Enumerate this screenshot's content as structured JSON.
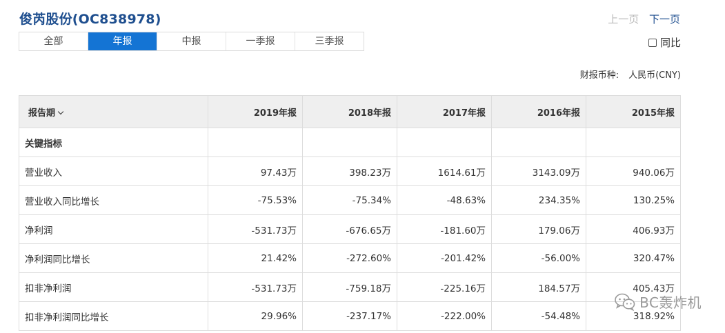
{
  "header": {
    "title": "俊芮股份(OC838978)"
  },
  "pager": {
    "prev": "上一页",
    "next": "下一页"
  },
  "tabs": [
    "全部",
    "年报",
    "中报",
    "一季报",
    "三季报"
  ],
  "active_tab": "年报",
  "yoy_label": "同比",
  "currency": {
    "label": "财报币种:",
    "value": "人民币(CNY)"
  },
  "table": {
    "headers": [
      "报告期",
      "2019年报",
      "2018年报",
      "2017年报",
      "2016年报",
      "2015年报"
    ],
    "section": "关键指标",
    "rows": [
      [
        "营业收入",
        "97.43万",
        "398.23万",
        "1614.61万",
        "3143.09万",
        "940.06万"
      ],
      [
        "营业收入同比增长",
        "-75.53%",
        "-75.34%",
        "-48.63%",
        "234.35%",
        "130.25%"
      ],
      [
        "净利润",
        "-531.73万",
        "-676.65万",
        "-181.60万",
        "179.06万",
        "406.93万"
      ],
      [
        "净利润同比增长",
        "21.42%",
        "-272.60%",
        "-201.42%",
        "-56.00%",
        "320.47%"
      ],
      [
        "扣非净利润",
        "-531.73万",
        "-759.18万",
        "-225.16万",
        "184.57万",
        "405.43万"
      ],
      [
        "扣非净利润同比增长",
        "29.96%",
        "-237.17%",
        "-222.00%",
        "-54.48%",
        "318.92%"
      ]
    ]
  },
  "watermark": {
    "text": "BC轰炸机",
    "icon": "wechat-icon"
  }
}
